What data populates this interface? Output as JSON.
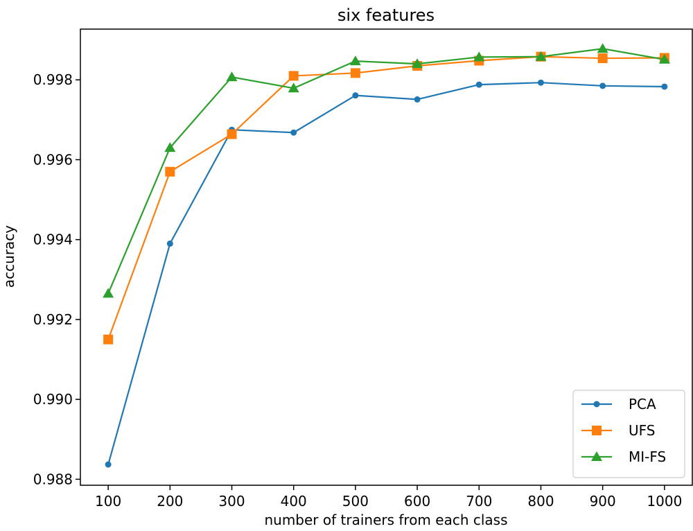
{
  "chart_data": {
    "type": "line",
    "title": "six features",
    "xlabel": "number of trainers from each class",
    "ylabel": "accuracy",
    "x": [
      100,
      200,
      300,
      400,
      500,
      600,
      700,
      800,
      900,
      1000
    ],
    "xlim": [
      55,
      1045
    ],
    "ylim": [
      0.98785,
      0.99927
    ],
    "xticks": [
      100,
      200,
      300,
      400,
      500,
      600,
      700,
      800,
      900,
      1000
    ],
    "yticks": [
      0.988,
      0.99,
      0.992,
      0.994,
      0.996,
      0.998
    ],
    "ytick_labels": [
      "0.988",
      "0.990",
      "0.992",
      "0.994",
      "0.996",
      "0.998"
    ],
    "grid": false,
    "legend_position": "lower-right",
    "series": [
      {
        "name": "PCA",
        "color": "#1f77b4",
        "marker": "dot",
        "values": [
          0.98837,
          0.9939,
          0.99675,
          0.99668,
          0.99761,
          0.99751,
          0.99788,
          0.99793,
          0.99785,
          0.99783
        ]
      },
      {
        "name": "UFS",
        "color": "#ff7f0e",
        "marker": "square",
        "values": [
          0.9915,
          0.9957,
          0.99664,
          0.9981,
          0.99817,
          0.99835,
          0.99848,
          0.99858,
          0.99854,
          0.99855
        ]
      },
      {
        "name": "MI-FS",
        "color": "#2ca02c",
        "marker": "triangle",
        "values": [
          0.99265,
          0.9963,
          0.99807,
          0.99779,
          0.99847,
          0.9984,
          0.99857,
          0.99858,
          0.99878,
          0.99851
        ]
      }
    ]
  }
}
